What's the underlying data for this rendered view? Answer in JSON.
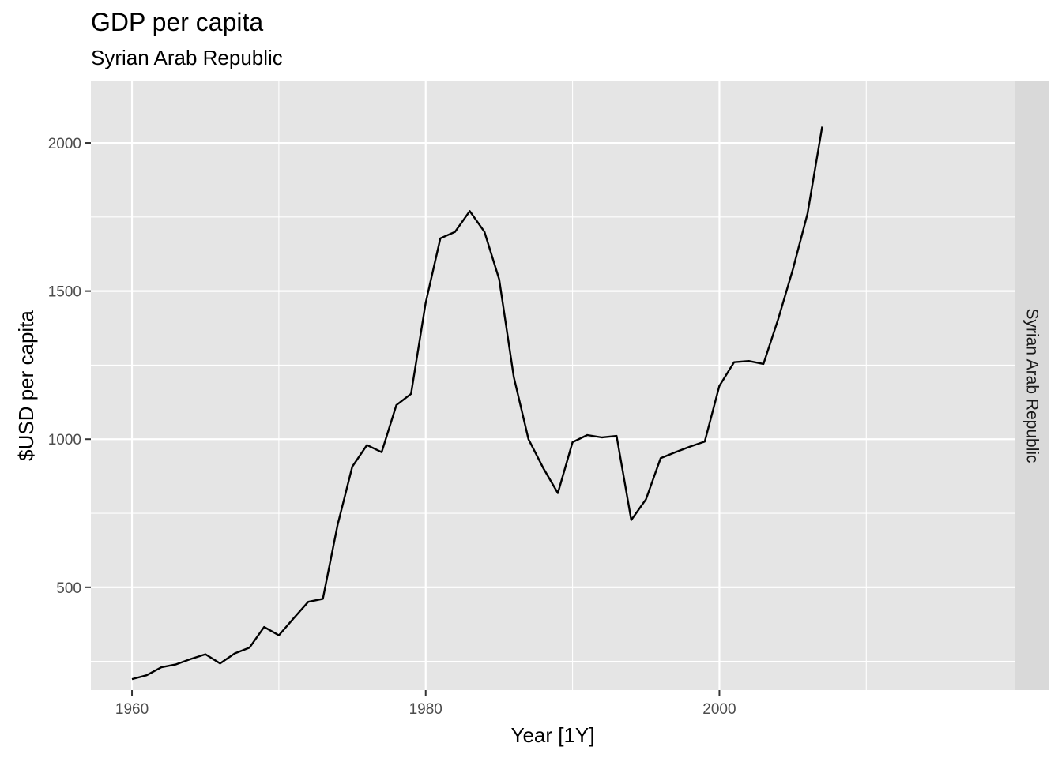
{
  "chart_data": {
    "type": "line",
    "title": "GDP per capita",
    "subtitle": "Syrian Arab Republic",
    "xlabel": "Year [1Y]",
    "ylabel": "$USD per capita",
    "facet_label": "Syrian Arab Republic",
    "xlim": [
      1957.2,
      2020.1
    ],
    "ylim": [
      153,
      2208
    ],
    "x_major_ticks": [
      1960,
      1980,
      2000
    ],
    "x_minor_ticks": [
      1970,
      1990,
      2010
    ],
    "y_major_ticks": [
      500,
      1000,
      1500,
      2000
    ],
    "y_minor_ticks": [
      250,
      750,
      1250,
      1750
    ],
    "grid": true,
    "colors": {
      "panel": "#e5e5e5",
      "grid": "#ffffff",
      "strip": "#d9d9d9",
      "line": "#000000"
    },
    "series": [
      {
        "x": [
          1960,
          1961,
          1962,
          1963,
          1964,
          1965,
          1966,
          1967,
          1968,
          1969,
          1970,
          1971,
          1972,
          1973,
          1974,
          1975,
          1976,
          1977,
          1978,
          1979,
          1980,
          1981,
          1982,
          1983,
          1984,
          1985,
          1986,
          1987,
          1988,
          1989,
          1990,
          1991,
          1992,
          1993,
          1994,
          1995,
          1996,
          1997,
          1998,
          1999,
          2000,
          2001,
          2002,
          2003,
          2004,
          2005,
          2006,
          2007
        ],
        "values": [
          190,
          203,
          230,
          240,
          258,
          274,
          243,
          277,
          296,
          366,
          338,
          395,
          451,
          461,
          710,
          907,
          980,
          956,
          1115,
          1153,
          1460,
          1678,
          1700,
          1770,
          1700,
          1540,
          1210,
          1000,
          903,
          818,
          990,
          1014,
          1006,
          1011,
          727,
          797,
          936,
          956,
          975,
          992,
          1180,
          1260,
          1264,
          1254,
          1405,
          1573,
          1762,
          2055
        ]
      }
    ]
  }
}
